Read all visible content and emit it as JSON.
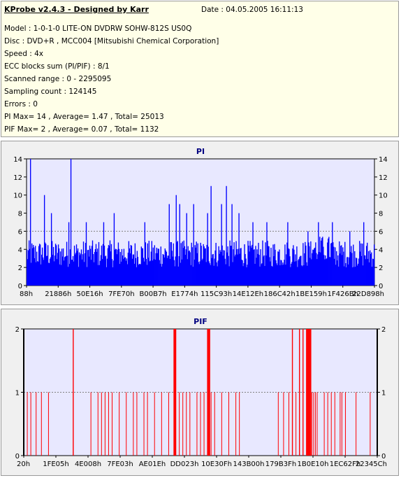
{
  "header": {
    "title": "KProbe v2.4.3 - Designed by Karr",
    "date": "Date : 04.05.2005 16:11:13",
    "lines": [
      "Model : 1-0-1-0 LITE-ON DVDRW SOHW-812S  US0Q",
      "Disc : DVD+R , MCC004 [Mitsubishi Chemical Corporation]",
      "Speed : 4x",
      "ECC blocks sum (PI/PIF) : 8/1",
      "Scanned range : 0 - 2295095",
      "Sampling count : 124145",
      "Errors : 0",
      "PI Max= 14 , Average= 1.47 , Total= 25013",
      "PIF Max= 2 , Average= 0.07 , Total= 1132"
    ]
  },
  "colors": {
    "pi": "#0000ff",
    "pif": "#ff0000",
    "plot_bg": "#e8e8ff",
    "title": "#000080"
  },
  "chart_data": [
    {
      "type": "bar",
      "title": "PI",
      "ylim": [
        0,
        14
      ],
      "yticks": [
        0,
        2,
        4,
        6,
        8,
        10,
        12,
        14
      ],
      "gridlines": [
        6
      ],
      "xtick_labels": [
        "88h",
        "21886h",
        "50E16h",
        "7FE70h",
        "B00B7h",
        "E1774h",
        "115C93h",
        "14E12Eh",
        "186C42h",
        "1BE159h",
        "1F426Bh",
        "22D898h"
      ],
      "baseline_range": [
        2,
        5
      ],
      "spikes": [
        {
          "x": 0.01,
          "value": 14
        },
        {
          "x": 0.05,
          "value": 10
        },
        {
          "x": 0.07,
          "value": 8
        },
        {
          "x": 0.12,
          "value": 7
        },
        {
          "x": 0.126,
          "value": 14
        },
        {
          "x": 0.17,
          "value": 7
        },
        {
          "x": 0.22,
          "value": 7
        },
        {
          "x": 0.25,
          "value": 8
        },
        {
          "x": 0.34,
          "value": 7
        },
        {
          "x": 0.41,
          "value": 9
        },
        {
          "x": 0.43,
          "value": 10
        },
        {
          "x": 0.44,
          "value": 9
        },
        {
          "x": 0.46,
          "value": 8
        },
        {
          "x": 0.48,
          "value": 9
        },
        {
          "x": 0.52,
          "value": 8
        },
        {
          "x": 0.53,
          "value": 11
        },
        {
          "x": 0.56,
          "value": 9
        },
        {
          "x": 0.575,
          "value": 11
        },
        {
          "x": 0.59,
          "value": 9
        },
        {
          "x": 0.61,
          "value": 8
        },
        {
          "x": 0.65,
          "value": 7
        },
        {
          "x": 0.69,
          "value": 7
        },
        {
          "x": 0.75,
          "value": 7
        },
        {
          "x": 0.81,
          "value": 6
        },
        {
          "x": 0.84,
          "value": 7
        },
        {
          "x": 0.88,
          "value": 7
        },
        {
          "x": 0.93,
          "value": 6
        },
        {
          "x": 0.97,
          "value": 7
        }
      ]
    },
    {
      "type": "bar",
      "title": "PIF",
      "ylim": [
        0,
        2
      ],
      "yticks": [
        0,
        1,
        2
      ],
      "gridlines": [
        1
      ],
      "xtick_labels": [
        "20h",
        "1FE05h",
        "4E008h",
        "7FE03h",
        "AE01Eh",
        "DD023h",
        "10E30Fh",
        "143B00h",
        "179B3Fh",
        "1B0E10h",
        "1EC62Fh",
        "22345Ch"
      ],
      "value2_x": [
        0.14,
        0.425,
        0.426,
        0.428,
        0.43,
        0.52,
        0.522,
        0.524,
        0.526,
        0.76,
        0.78,
        0.79,
        0.8,
        0.802,
        0.804,
        0.806,
        0.808,
        0.81,
        0.812
      ],
      "value1_x": [
        0.0,
        0.01,
        0.02,
        0.035,
        0.05,
        0.07,
        0.14,
        0.19,
        0.21,
        0.22,
        0.23,
        0.24,
        0.25,
        0.27,
        0.29,
        0.31,
        0.32,
        0.34,
        0.35,
        0.37,
        0.39,
        0.41,
        0.44,
        0.45,
        0.46,
        0.47,
        0.49,
        0.5,
        0.51,
        0.53,
        0.54,
        0.56,
        0.58,
        0.6,
        0.61,
        0.72,
        0.735,
        0.75,
        0.77,
        0.815,
        0.82,
        0.825,
        0.83,
        0.85,
        0.86,
        0.87,
        0.88,
        0.895,
        0.9,
        0.91,
        0.94,
        0.98
      ]
    }
  ]
}
